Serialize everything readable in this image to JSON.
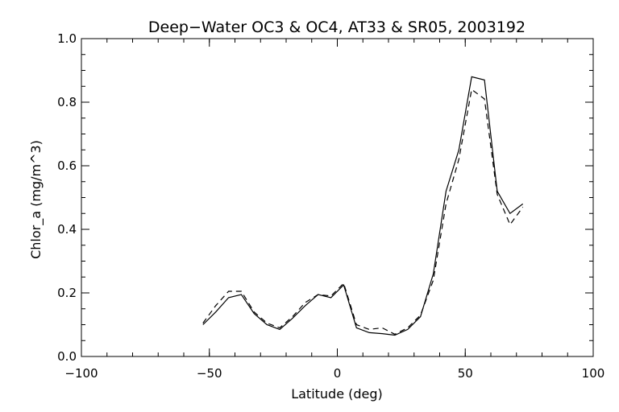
{
  "chart_data": {
    "type": "line",
    "title": "Deep−Water OC3 & OC4, AT33 & SR05, 2003192",
    "xlabel": "Latitude (deg)",
    "ylabel": "Chlor_a (mg/m^3)",
    "xlim": [
      -100,
      100
    ],
    "ylim": [
      0.0,
      1.0
    ],
    "x_ticks": [
      -100,
      -50,
      0,
      50,
      100
    ],
    "x_tick_labels": [
      "−100",
      "−50",
      "0",
      "50",
      "100"
    ],
    "y_ticks": [
      0.0,
      0.2,
      0.4,
      0.6,
      0.8,
      1.0
    ],
    "y_tick_labels": [
      "0.0",
      "0.2",
      "0.4",
      "0.6",
      "0.8",
      "1.0"
    ],
    "x_minor_step": 10,
    "y_minor_step": 0.05,
    "grid": false,
    "x": [
      -52.5,
      -47.5,
      -42.5,
      -37.5,
      -32.5,
      -27.5,
      -22.5,
      -17.5,
      -12.5,
      -7.5,
      -2.5,
      2.5,
      7.5,
      12.5,
      17.5,
      22.5,
      27.5,
      32.5,
      37.5,
      42.5,
      47.5,
      52.5,
      57.5,
      62.5,
      67.5,
      72.5
    ],
    "series": [
      {
        "style": "solid",
        "values": [
          0.1,
          0.14,
          0.185,
          0.195,
          0.135,
          0.1,
          0.085,
          0.12,
          0.16,
          0.195,
          0.185,
          0.225,
          0.09,
          0.075,
          0.072,
          0.067,
          0.085,
          0.125,
          0.26,
          0.52,
          0.65,
          0.88,
          0.87,
          0.52,
          0.45,
          0.48
        ]
      },
      {
        "style": "dashed",
        "values": [
          0.105,
          0.16,
          0.205,
          0.205,
          0.14,
          0.105,
          0.09,
          0.125,
          0.17,
          0.195,
          0.19,
          0.23,
          0.1,
          0.085,
          0.09,
          0.07,
          0.09,
          0.13,
          0.24,
          0.48,
          0.62,
          0.84,
          0.81,
          0.51,
          0.415,
          0.47
        ]
      }
    ]
  }
}
